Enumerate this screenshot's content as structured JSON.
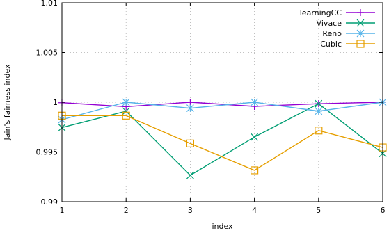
{
  "chart_data": {
    "type": "line",
    "title": "",
    "xlabel": "index",
    "ylabel": "Jain's fairness index",
    "x": [
      1,
      2,
      3,
      4,
      5,
      6
    ],
    "xlim": [
      1,
      6
    ],
    "ylim": [
      0.99,
      1.01
    ],
    "x_ticks": [
      "1",
      "2",
      "3",
      "4",
      "5",
      "6"
    ],
    "y_ticks": [
      "0.99",
      "0.995",
      "1",
      "1.005",
      "1.01"
    ],
    "grid": true,
    "legend_position": "top-right",
    "series": [
      {
        "name": "learningCC",
        "color": "#9400d3",
        "marker": "plus",
        "values": [
          0.99995,
          0.99955,
          1.0,
          0.99958,
          0.99985,
          1.0
        ]
      },
      {
        "name": "Vivace",
        "color": "#009e73",
        "marker": "cross",
        "values": [
          0.99745,
          0.9991,
          0.99265,
          0.9965,
          0.99985,
          0.99485
        ]
      },
      {
        "name": "Reno",
        "color": "#56b4e9",
        "marker": "star",
        "values": [
          0.99825,
          1.0,
          0.9994,
          1.0,
          0.9991,
          1.0
        ]
      },
      {
        "name": "Cubic",
        "color": "#e69f00",
        "marker": "square",
        "values": [
          0.99865,
          0.99865,
          0.99585,
          0.99315,
          0.99715,
          0.99545
        ]
      }
    ]
  }
}
